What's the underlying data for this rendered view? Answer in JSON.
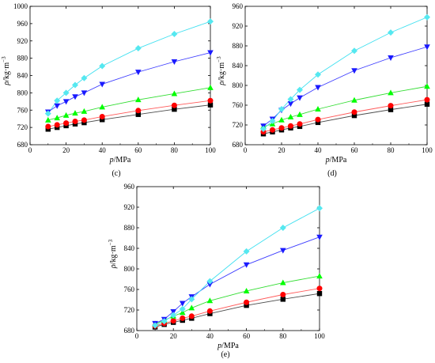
{
  "chart_data": [
    {
      "type": "line",
      "label": "(c)",
      "xlabel_var": "p",
      "xlabel_unit": "/MPa",
      "ylabel_var": "ρ",
      "ylabel_unit": "/kg·m",
      "ylabel_exp": "−3",
      "xlim": [
        0,
        100
      ],
      "ylim": [
        680,
        1000
      ],
      "xticks": [
        0,
        20,
        40,
        60,
        80,
        100
      ],
      "yticks": [
        680,
        720,
        760,
        800,
        840,
        880,
        920,
        960,
        1000
      ],
      "grid": false,
      "series": [
        {
          "marker": "square",
          "color": "#000000",
          "line_color": "#4d4d4d",
          "x": [
            10,
            15,
            20,
            25,
            30,
            40,
            60,
            80,
            100
          ],
          "y": [
            716,
            720,
            724,
            728,
            731,
            738,
            750,
            762,
            772
          ]
        },
        {
          "marker": "circle",
          "color": "#ff0000",
          "line_color": "#ff5a5a",
          "x": [
            10,
            15,
            20,
            25,
            30,
            40,
            60,
            80,
            100
          ],
          "y": [
            722,
            726,
            730,
            734,
            737,
            745,
            759,
            771,
            782
          ]
        },
        {
          "marker": "triangle-up",
          "color": "#00ff00",
          "line_color": "#33dd33",
          "x": [
            10,
            15,
            20,
            25,
            30,
            40,
            60,
            80,
            100
          ],
          "y": [
            737,
            742,
            748,
            753,
            757,
            767,
            784,
            798,
            812
          ]
        },
        {
          "marker": "triangle-down",
          "color": "#1a1aff",
          "line_color": "#3c3cff",
          "x": [
            10,
            15,
            20,
            25,
            30,
            40,
            60,
            80,
            100
          ],
          "y": [
            756,
            770,
            780,
            791,
            800,
            820,
            848,
            872,
            893
          ]
        },
        {
          "marker": "diamond",
          "color": "#55e8f0",
          "line_color": "#40e0f0",
          "x": [
            10,
            15,
            20,
            25,
            30,
            40,
            60,
            80,
            100
          ],
          "y": [
            752,
            782,
            800,
            818,
            834,
            862,
            903,
            936,
            965
          ]
        }
      ]
    },
    {
      "type": "line",
      "label": "(d)",
      "xlabel_var": "p",
      "xlabel_unit": "/MPa",
      "ylabel_var": "ρ",
      "ylabel_unit": "/kg·m",
      "ylabel_exp": "−3",
      "xlim": [
        0,
        100
      ],
      "ylim": [
        680,
        960
      ],
      "xticks": [
        0,
        20,
        40,
        60,
        80,
        100
      ],
      "yticks": [
        680,
        720,
        760,
        800,
        840,
        880,
        920,
        960
      ],
      "grid": false,
      "series": [
        {
          "marker": "square",
          "color": "#000000",
          "line_color": "#4d4d4d",
          "x": [
            10,
            15,
            20,
            25,
            30,
            40,
            60,
            80,
            100
          ],
          "y": [
            702,
            706,
            710,
            714,
            717,
            725,
            739,
            751,
            762
          ]
        },
        {
          "marker": "circle",
          "color": "#ff0000",
          "line_color": "#ff5a5a",
          "x": [
            10,
            15,
            20,
            25,
            30,
            40,
            60,
            80,
            100
          ],
          "y": [
            706,
            710,
            714,
            718,
            722,
            731,
            746,
            759,
            771
          ]
        },
        {
          "marker": "triangle-up",
          "color": "#00ff00",
          "line_color": "#33dd33",
          "x": [
            10,
            15,
            20,
            25,
            30,
            40,
            60,
            80,
            100
          ],
          "y": [
            717,
            722,
            730,
            736,
            741,
            752,
            770,
            785,
            798
          ]
        },
        {
          "marker": "triangle-down",
          "color": "#1a1aff",
          "line_color": "#3c3cff",
          "x": [
            10,
            15,
            20,
            25,
            30,
            40,
            60,
            80,
            100
          ],
          "y": [
            718,
            732,
            750,
            763,
            775,
            796,
            830,
            856,
            878
          ]
        },
        {
          "marker": "diamond",
          "color": "#55e8f0",
          "line_color": "#40e0f0",
          "x": [
            10,
            15,
            20,
            25,
            30,
            40,
            60,
            80,
            100
          ],
          "y": [
            712,
            728,
            752,
            772,
            791,
            822,
            870,
            907,
            938
          ]
        }
      ]
    },
    {
      "type": "line",
      "label": "(e)",
      "xlabel_var": "p",
      "xlabel_unit": "/MPa",
      "ylabel_var": "ρ",
      "ylabel_unit": "/kg·m",
      "ylabel_exp": "−3",
      "xlim": [
        0,
        100
      ],
      "ylim": [
        680,
        960
      ],
      "xticks": [
        0,
        20,
        40,
        60,
        80,
        100
      ],
      "yticks": [
        680,
        720,
        760,
        800,
        840,
        880,
        920,
        960
      ],
      "grid": false,
      "series": [
        {
          "marker": "square",
          "color": "#000000",
          "line_color": "#4d4d4d",
          "x": [
            10,
            15,
            20,
            25,
            30,
            40,
            60,
            80,
            100
          ],
          "y": [
            687,
            692,
            696,
            700,
            704,
            713,
            729,
            741,
            752
          ]
        },
        {
          "marker": "circle",
          "color": "#ff0000",
          "line_color": "#ff5a5a",
          "x": [
            10,
            15,
            20,
            25,
            30,
            40,
            60,
            80,
            100
          ],
          "y": [
            689,
            694,
            699,
            704,
            708,
            718,
            735,
            750,
            762
          ]
        },
        {
          "marker": "triangle-up",
          "color": "#00ff00",
          "line_color": "#33dd33",
          "x": [
            10,
            15,
            20,
            25,
            30,
            40,
            60,
            80,
            100
          ],
          "y": [
            693,
            700,
            708,
            715,
            724,
            738,
            757,
            773,
            786
          ]
        },
        {
          "marker": "triangle-down",
          "color": "#1a1aff",
          "line_color": "#3c3cff",
          "x": [
            10,
            15,
            20,
            25,
            30,
            40,
            60,
            80,
            100
          ],
          "y": [
            694,
            702,
            717,
            733,
            746,
            770,
            808,
            836,
            862
          ]
        },
        {
          "marker": "diamond",
          "color": "#55e8f0",
          "line_color": "#40e0f0",
          "x": [
            10,
            15,
            20,
            25,
            30,
            40,
            60,
            80,
            100
          ],
          "y": [
            690,
            698,
            710,
            722,
            741,
            776,
            834,
            880,
            918
          ]
        }
      ]
    }
  ]
}
